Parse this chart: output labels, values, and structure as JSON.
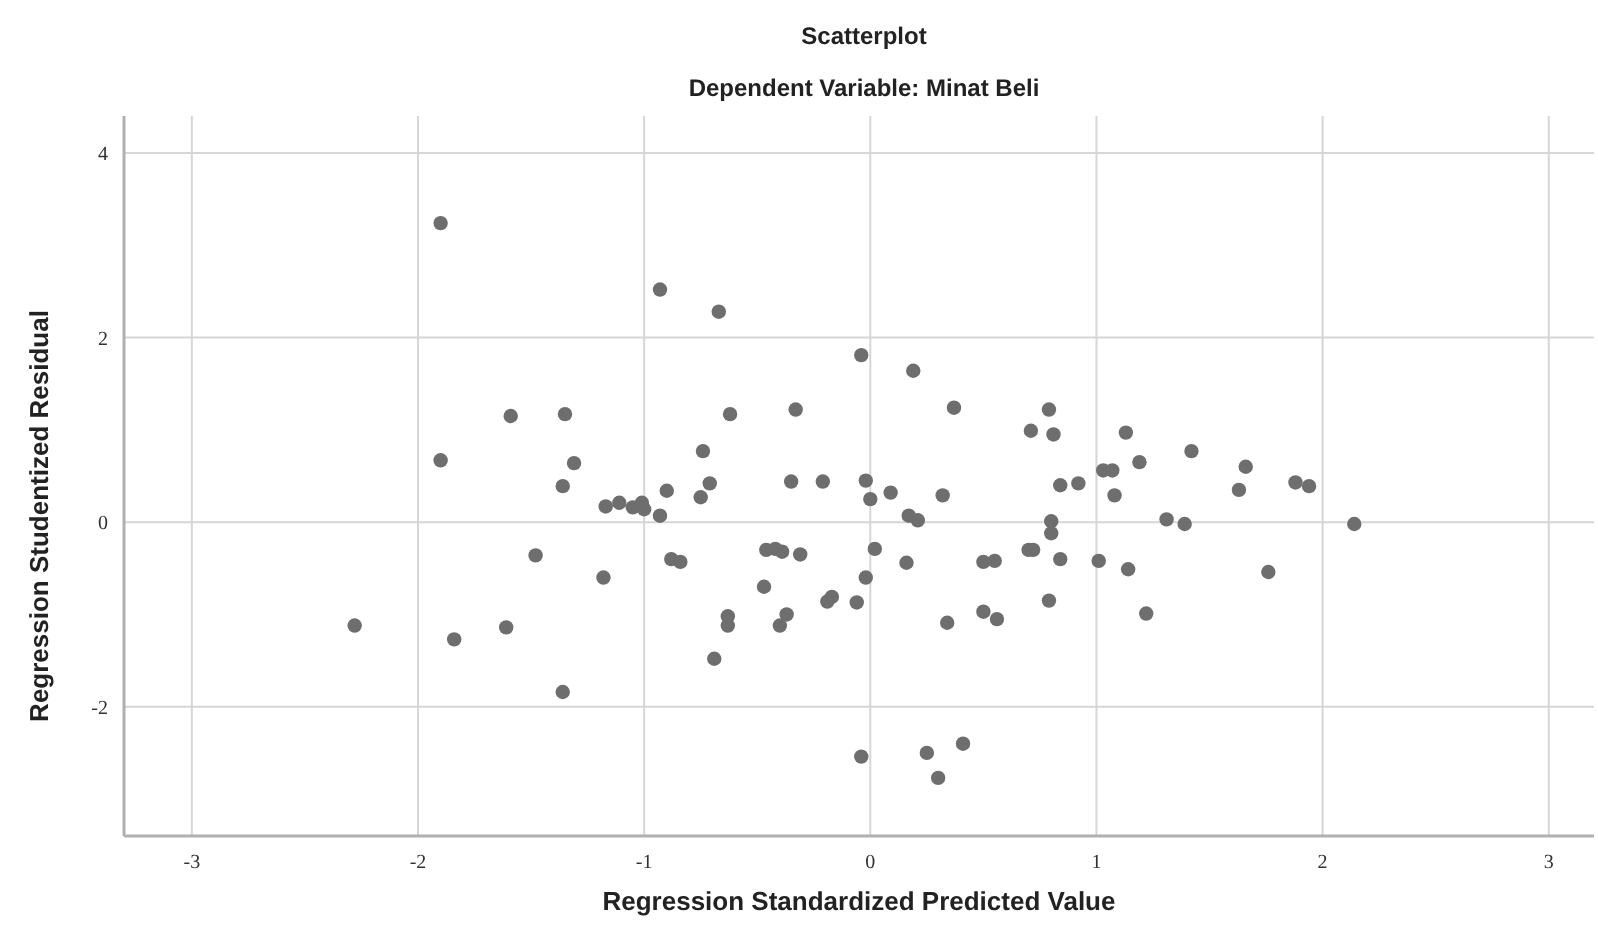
{
  "chart_data": {
    "type": "scatter",
    "title": "Scatterplot",
    "subtitle": "Dependent Variable: Minat Beli",
    "xlabel": "Regression Standardized Predicted Value",
    "ylabel": "Regression Studentized Residual",
    "xlim": [
      -3.3,
      3.2
    ],
    "ylim": [
      -3.4,
      4.4
    ],
    "xticks": [
      -3,
      -2,
      -1,
      0,
      1,
      2,
      3
    ],
    "yticks": [
      -2,
      0,
      2,
      4
    ],
    "grid": true,
    "marker": "circle",
    "series": [
      {
        "color": "#6e6e6e",
        "x": [
          -1.9,
          -0.93,
          -0.67,
          -1.59,
          -1.35,
          -1.9,
          -1.31,
          -0.74,
          -1.36,
          -0.9,
          -0.71,
          -0.75,
          -1.17,
          -1.11,
          -1.05,
          -1.01,
          -1.0,
          -0.93,
          -1.48,
          -1.18,
          -0.88,
          -0.84,
          -2.28,
          -1.84,
          -1.61,
          -1.36,
          -0.69,
          -0.63,
          -0.63,
          -0.62,
          -0.04,
          0.19,
          -0.33,
          0.37,
          0.79,
          0.71,
          0.81,
          1.13,
          1.19,
          -0.35,
          -0.21,
          -0.02,
          0.0,
          0.09,
          0.32,
          0.17,
          0.21,
          0.84,
          0.92,
          1.03,
          1.07,
          1.08,
          0.8,
          0.8,
          -0.46,
          -0.42,
          -0.39,
          -0.31,
          0.02,
          0.16,
          -0.02,
          -0.47,
          0.5,
          0.55,
          0.7,
          0.72,
          0.84,
          1.01,
          1.14,
          0.79,
          -0.19,
          -0.17,
          -0.06,
          -0.37,
          -0.4,
          0.34,
          0.5,
          0.56,
          1.22,
          -0.04,
          0.25,
          0.41,
          0.3,
          1.42,
          1.66,
          1.63,
          1.88,
          1.94,
          1.31,
          1.39,
          2.14,
          1.76
        ],
        "values": [
          3.24,
          2.52,
          2.28,
          1.15,
          1.17,
          0.67,
          0.64,
          0.77,
          0.39,
          0.34,
          0.42,
          0.27,
          0.17,
          0.21,
          0.16,
          0.21,
          0.14,
          0.07,
          -0.36,
          -0.6,
          -0.4,
          -0.43,
          -1.12,
          -1.27,
          -1.14,
          -1.84,
          -1.48,
          -1.02,
          -1.12,
          1.17,
          1.81,
          1.64,
          1.22,
          1.24,
          1.22,
          0.99,
          0.95,
          0.97,
          0.65,
          0.44,
          0.44,
          0.45,
          0.25,
          0.32,
          0.29,
          0.07,
          0.02,
          0.4,
          0.42,
          0.56,
          0.56,
          0.29,
          0.01,
          -0.12,
          -0.3,
          -0.29,
          -0.32,
          -0.35,
          -0.29,
          -0.44,
          -0.6,
          -0.7,
          -0.43,
          -0.42,
          -0.3,
          -0.3,
          -0.4,
          -0.42,
          -0.51,
          -0.85,
          -0.86,
          -0.81,
          -0.87,
          -1.0,
          -1.12,
          -1.09,
          -0.97,
          -1.05,
          -0.99,
          -2.54,
          -2.5,
          -2.4,
          -2.77,
          0.77,
          0.6,
          0.35,
          0.43,
          0.39,
          0.03,
          -0.02,
          -0.02,
          -0.54
        ]
      }
    ]
  }
}
